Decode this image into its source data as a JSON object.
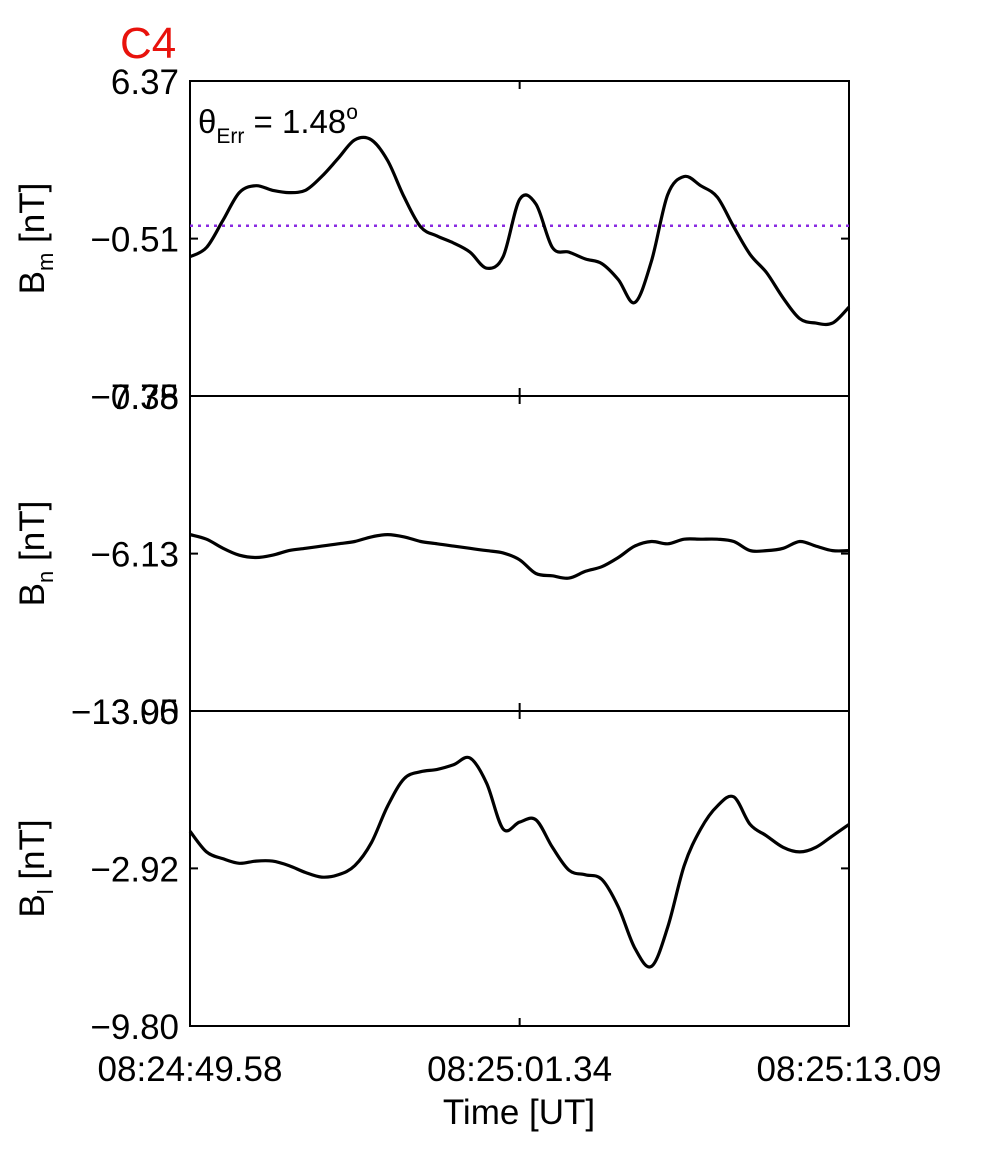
{
  "chart_data": {
    "type": "line",
    "title": "C4",
    "title_color": "#e8120c",
    "annotation": {
      "symbol": "θ",
      "subscript": "Err",
      "value": " =  1.48",
      "superscript": "o"
    },
    "xlabel": "Time [UT]",
    "xlim": [
      0,
      23.51
    ],
    "x_tick_values": [
      0,
      11.76,
      23.51
    ],
    "x_tick_labels": [
      "08:24:49.58",
      "08:25:01.34",
      "08:25:13.09"
    ],
    "panels": [
      {
        "ylabel_main": "B",
        "ylabel_sub": "m",
        "ylabel_unit": " [nT]",
        "ylim": [
          -7.38,
          6.37
        ],
        "y_ticks": [
          6.37,
          -0.51,
          -7.38
        ],
        "y_tick_labels": [
          "6.37",
          "−0.51",
          "−7.38"
        ],
        "reference_line": {
          "y": 0.05,
          "color": "#8a2be2",
          "style": "dotted"
        },
        "series": [
          {
            "color": "#000000",
            "x": [
              0,
              0.59,
              1.18,
              1.76,
              2.35,
              2.94,
              3.53,
              4.12,
              4.7,
              5.29,
              5.88,
              6.47,
              7.05,
              7.64,
              8.23,
              8.82,
              9.4,
              9.99,
              10.58,
              11.17,
              11.76,
              12.34,
              12.93,
              13.52,
              14.11,
              14.69,
              15.28,
              15.87,
              16.46,
              17.04,
              17.63,
              18.22,
              18.81,
              19.4,
              19.98,
              20.57,
              21.16,
              21.75,
              22.33,
              22.92,
              23.51
            ],
            "y": [
              -1.3,
              -0.9,
              0.3,
              1.5,
              1.8,
              1.6,
              1.5,
              1.6,
              2.2,
              3.0,
              3.8,
              3.8,
              2.9,
              1.3,
              0.0,
              -0.4,
              -0.7,
              -1.1,
              -1.8,
              -1.3,
              1.2,
              1.0,
              -0.9,
              -1.1,
              -1.4,
              -1.6,
              -2.3,
              -3.3,
              -1.5,
              1.4,
              2.2,
              1.8,
              1.3,
              0.0,
              -1.2,
              -2.0,
              -3.1,
              -4.0,
              -4.2,
              -4.2,
              -3.5
            ]
          }
        ]
      },
      {
        "ylabel_main": "B",
        "ylabel_sub": "n",
        "ylabel_unit": " [nT]",
        "ylim": [
          -13.0,
          0.75
        ],
        "y_ticks": [
          0.75,
          -6.13,
          -13.0
        ],
        "y_tick_labels": [
          "0.75",
          "−6.13",
          "−13.00"
        ],
        "series": [
          {
            "color": "#000000",
            "x": [
              0,
              0.59,
              1.18,
              1.76,
              2.35,
              2.94,
              3.53,
              4.12,
              4.7,
              5.29,
              5.88,
              6.47,
              7.05,
              7.64,
              8.23,
              8.82,
              9.4,
              9.99,
              10.58,
              11.17,
              11.76,
              12.34,
              12.93,
              13.52,
              14.11,
              14.69,
              15.28,
              15.87,
              16.46,
              17.04,
              17.63,
              18.22,
              18.81,
              19.4,
              19.98,
              20.57,
              21.16,
              21.75,
              22.33,
              22.92,
              23.51
            ],
            "y": [
              -5.3,
              -5.5,
              -5.9,
              -6.2,
              -6.3,
              -6.2,
              -6.0,
              -5.9,
              -5.8,
              -5.7,
              -5.6,
              -5.4,
              -5.3,
              -5.4,
              -5.6,
              -5.7,
              -5.8,
              -5.9,
              -6.0,
              -6.1,
              -6.4,
              -7.0,
              -7.1,
              -7.2,
              -6.9,
              -6.7,
              -6.3,
              -5.8,
              -5.6,
              -5.7,
              -5.5,
              -5.5,
              -5.5,
              -5.6,
              -6.0,
              -6.0,
              -5.9,
              -5.6,
              -5.8,
              -6.0,
              -6.0
            ]
          }
        ]
      },
      {
        "ylabel_main": "B",
        "ylabel_sub": "l",
        "ylabel_unit": " [nT]",
        "ylim": [
          -9.8,
          3.95
        ],
        "y_ticks": [
          3.95,
          -2.92,
          -9.8
        ],
        "y_tick_labels": [
          "3.95",
          "−2.92",
          "−9.80"
        ],
        "series": [
          {
            "color": "#000000",
            "x": [
              0,
              0.59,
              1.18,
              1.76,
              2.35,
              2.94,
              3.53,
              4.12,
              4.7,
              5.29,
              5.88,
              6.47,
              7.05,
              7.64,
              8.23,
              8.82,
              9.4,
              9.99,
              10.58,
              11.17,
              11.76,
              12.34,
              12.93,
              13.52,
              14.11,
              14.69,
              15.28,
              15.87,
              16.46,
              17.04,
              17.63,
              18.22,
              18.81,
              19.4,
              19.98,
              20.57,
              21.16,
              21.75,
              22.33,
              22.92,
              23.51
            ],
            "y": [
              -1.3,
              -2.2,
              -2.5,
              -2.7,
              -2.6,
              -2.6,
              -2.8,
              -3.1,
              -3.3,
              -3.2,
              -2.8,
              -1.8,
              -0.2,
              1.0,
              1.3,
              1.4,
              1.6,
              1.9,
              0.8,
              -1.2,
              -0.9,
              -0.8,
              -2.0,
              -3.0,
              -3.2,
              -3.4,
              -4.6,
              -6.4,
              -7.2,
              -5.5,
              -2.8,
              -1.2,
              -0.2,
              0.2,
              -1.0,
              -1.5,
              -2.0,
              -2.2,
              -2.0,
              -1.5,
              -1.0
            ]
          }
        ]
      }
    ]
  }
}
